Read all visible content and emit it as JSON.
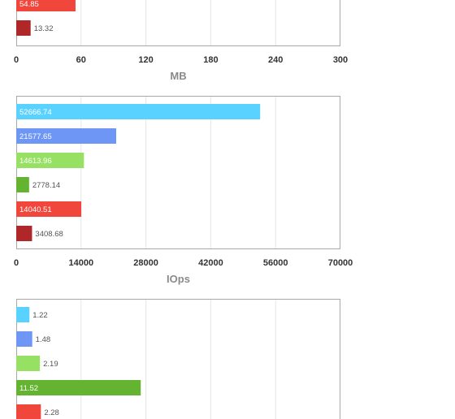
{
  "chart_data": [
    {
      "type": "bar",
      "orientation": "horizontal",
      "xlabel": "MB",
      "xlim": [
        0,
        300
      ],
      "ticks": [
        "0",
        "60",
        "120",
        "180",
        "240",
        "300"
      ],
      "grid": true,
      "bars": [
        {
          "value": 54.85,
          "label": "54.85",
          "color": "#f0463c"
        },
        {
          "value": 13.32,
          "label": "13.32",
          "color": "#b0272a"
        }
      ]
    },
    {
      "type": "bar",
      "orientation": "horizontal",
      "xlabel": "IOps",
      "xlim": [
        0,
        70000
      ],
      "ticks": [
        "0",
        "14000",
        "28000",
        "42000",
        "56000",
        "70000"
      ],
      "grid": true,
      "bars": [
        {
          "value": 52666.74,
          "label": "52666.74",
          "color": "#5ad2ff"
        },
        {
          "value": 21577.65,
          "label": "21577.65",
          "color": "#6e96f5"
        },
        {
          "value": 14613.96,
          "label": "14613.96",
          "color": "#96e164"
        },
        {
          "value": 2778.14,
          "label": "2778.14",
          "color": "#64b432"
        },
        {
          "value": 14040.51,
          "label": "14040.51",
          "color": "#f0463c"
        },
        {
          "value": 3408.68,
          "label": "3408.68",
          "color": "#b0272a"
        }
      ]
    },
    {
      "type": "bar",
      "orientation": "horizontal",
      "xlim": [
        0,
        30
      ],
      "grid": true,
      "bars": [
        {
          "value": 1.22,
          "label": "1.22",
          "color": "#5ad2ff"
        },
        {
          "value": 1.48,
          "label": "1.48",
          "color": "#6e96f5"
        },
        {
          "value": 2.19,
          "label": "2.19",
          "color": "#96e164"
        },
        {
          "value": 11.52,
          "label": "11.52",
          "color": "#64b432"
        },
        {
          "value": 2.28,
          "label": "2.28",
          "color": "#f0463c"
        }
      ]
    }
  ]
}
